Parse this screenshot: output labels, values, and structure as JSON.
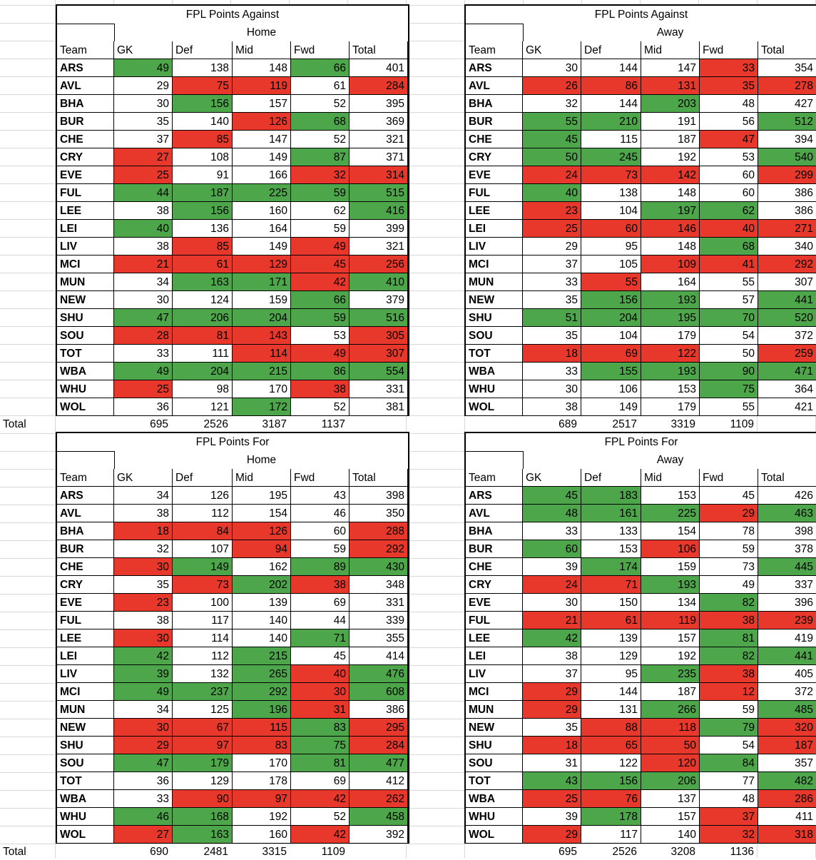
{
  "total_label": "Total",
  "headers": {
    "team": "Team",
    "columns": [
      "GK",
      "Def",
      "Mid",
      "Fwd",
      "Total"
    ]
  },
  "teams": [
    "ARS",
    "AVL",
    "BHA",
    "BUR",
    "CHE",
    "CRY",
    "EVE",
    "FUL",
    "LEE",
    "LEI",
    "LIV",
    "MCI",
    "MUN",
    "NEW",
    "SHU",
    "SOU",
    "TOT",
    "WBA",
    "WHU",
    "WOL"
  ],
  "colors": {
    "green": "#4ea64a",
    "red": "#e8382b",
    "white": "#ffffff"
  },
  "tables": [
    {
      "title": "FPL Points Against",
      "subtitle": "Home",
      "rows": [
        {
          "v": [
            49,
            138,
            148,
            66,
            401
          ],
          "c": "gwwgw"
        },
        {
          "v": [
            29,
            75,
            119,
            61,
            284
          ],
          "c": "wrrwr"
        },
        {
          "v": [
            30,
            156,
            157,
            52,
            395
          ],
          "c": "wgwww"
        },
        {
          "v": [
            35,
            140,
            126,
            68,
            369
          ],
          "c": "wwrgw"
        },
        {
          "v": [
            37,
            85,
            147,
            52,
            321
          ],
          "c": "wrwww"
        },
        {
          "v": [
            27,
            108,
            149,
            87,
            371
          ],
          "c": "rwwgw"
        },
        {
          "v": [
            25,
            91,
            166,
            32,
            314
          ],
          "c": "rwwrr"
        },
        {
          "v": [
            44,
            187,
            225,
            59,
            515
          ],
          "c": "ggggg"
        },
        {
          "v": [
            38,
            156,
            160,
            62,
            416
          ],
          "c": "wgwwg"
        },
        {
          "v": [
            40,
            136,
            164,
            59,
            399
          ],
          "c": "gwwww"
        },
        {
          "v": [
            38,
            85,
            149,
            49,
            321
          ],
          "c": "wrwrw"
        },
        {
          "v": [
            21,
            61,
            129,
            45,
            256
          ],
          "c": "rrrrr"
        },
        {
          "v": [
            34,
            163,
            171,
            42,
            410
          ],
          "c": "wggrg"
        },
        {
          "v": [
            30,
            124,
            159,
            66,
            379
          ],
          "c": "wwwgw"
        },
        {
          "v": [
            47,
            206,
            204,
            59,
            516
          ],
          "c": "ggggg"
        },
        {
          "v": [
            28,
            81,
            143,
            53,
            305
          ],
          "c": "rrrwr"
        },
        {
          "v": [
            33,
            111,
            114,
            49,
            307
          ],
          "c": "wwrrr"
        },
        {
          "v": [
            49,
            204,
            215,
            86,
            554
          ],
          "c": "ggggg"
        },
        {
          "v": [
            25,
            98,
            170,
            38,
            331
          ],
          "c": "rwwrw"
        },
        {
          "v": [
            36,
            121,
            172,
            52,
            381
          ],
          "c": "wwgww"
        }
      ],
      "totals": [
        695,
        2526,
        3187,
        1137
      ]
    },
    {
      "title": "FPL Points Against",
      "subtitle": "Away",
      "rows": [
        {
          "v": [
            30,
            144,
            147,
            33,
            354
          ],
          "c": "wwwrw"
        },
        {
          "v": [
            26,
            86,
            131,
            35,
            278
          ],
          "c": "rrrrr"
        },
        {
          "v": [
            32,
            144,
            203,
            48,
            427
          ],
          "c": "wwgww"
        },
        {
          "v": [
            55,
            210,
            191,
            56,
            512
          ],
          "c": "ggwwg"
        },
        {
          "v": [
            45,
            115,
            187,
            47,
            394
          ],
          "c": "gwwrw"
        },
        {
          "v": [
            50,
            245,
            192,
            53,
            540
          ],
          "c": "ggwwg"
        },
        {
          "v": [
            24,
            73,
            142,
            60,
            299
          ],
          "c": "rrrwr"
        },
        {
          "v": [
            40,
            138,
            148,
            60,
            386
          ],
          "c": "gwwww"
        },
        {
          "v": [
            23,
            104,
            197,
            62,
            386
          ],
          "c": "rwggw"
        },
        {
          "v": [
            25,
            60,
            146,
            40,
            271
          ],
          "c": "rrrrr"
        },
        {
          "v": [
            29,
            95,
            148,
            68,
            340
          ],
          "c": "wwwgw"
        },
        {
          "v": [
            37,
            105,
            109,
            41,
            292
          ],
          "c": "wwrrr"
        },
        {
          "v": [
            33,
            55,
            164,
            55,
            307
          ],
          "c": "wrwww"
        },
        {
          "v": [
            35,
            156,
            193,
            57,
            441
          ],
          "c": "wggwg"
        },
        {
          "v": [
            51,
            204,
            195,
            70,
            520
          ],
          "c": "ggggg"
        },
        {
          "v": [
            35,
            104,
            179,
            54,
            372
          ],
          "c": "wwwww"
        },
        {
          "v": [
            18,
            69,
            122,
            50,
            259
          ],
          "c": "rrrwr"
        },
        {
          "v": [
            33,
            155,
            193,
            90,
            471
          ],
          "c": "wgggg"
        },
        {
          "v": [
            30,
            106,
            153,
            75,
            364
          ],
          "c": "wwwgw"
        },
        {
          "v": [
            38,
            149,
            179,
            55,
            421
          ],
          "c": "wwwww"
        }
      ],
      "totals": [
        689,
        2517,
        3319,
        1109
      ]
    },
    {
      "title": "FPL Points For",
      "subtitle": "Home",
      "rows": [
        {
          "v": [
            34,
            126,
            195,
            43,
            398
          ],
          "c": "wwwww"
        },
        {
          "v": [
            38,
            112,
            154,
            46,
            350
          ],
          "c": "wwwww"
        },
        {
          "v": [
            18,
            84,
            126,
            60,
            288
          ],
          "c": "rrrwr"
        },
        {
          "v": [
            32,
            107,
            94,
            59,
            292
          ],
          "c": "wwrwr"
        },
        {
          "v": [
            30,
            149,
            162,
            89,
            430
          ],
          "c": "rgwgg"
        },
        {
          "v": [
            35,
            73,
            202,
            38,
            348
          ],
          "c": "wrgrw"
        },
        {
          "v": [
            23,
            100,
            139,
            69,
            331
          ],
          "c": "rwwww"
        },
        {
          "v": [
            38,
            117,
            140,
            44,
            339
          ],
          "c": "wwwww"
        },
        {
          "v": [
            30,
            114,
            140,
            71,
            355
          ],
          "c": "rwwgw"
        },
        {
          "v": [
            42,
            112,
            215,
            45,
            414
          ],
          "c": "gwgww"
        },
        {
          "v": [
            39,
            132,
            265,
            40,
            476
          ],
          "c": "gwgrg"
        },
        {
          "v": [
            49,
            237,
            292,
            30,
            608
          ],
          "c": "gggrg"
        },
        {
          "v": [
            34,
            125,
            196,
            31,
            386
          ],
          "c": "wwgrw"
        },
        {
          "v": [
            30,
            67,
            115,
            83,
            295
          ],
          "c": "rrrgr"
        },
        {
          "v": [
            29,
            97,
            83,
            75,
            284
          ],
          "c": "rrrgr"
        },
        {
          "v": [
            47,
            179,
            170,
            81,
            477
          ],
          "c": "ggwgg"
        },
        {
          "v": [
            36,
            129,
            178,
            69,
            412
          ],
          "c": "wwwww"
        },
        {
          "v": [
            33,
            90,
            97,
            42,
            262
          ],
          "c": "wrrrr"
        },
        {
          "v": [
            46,
            168,
            192,
            52,
            458
          ],
          "c": "ggwwg"
        },
        {
          "v": [
            27,
            163,
            160,
            42,
            392
          ],
          "c": "rgwrw"
        }
      ],
      "totals": [
        690,
        2481,
        3315,
        1109
      ]
    },
    {
      "title": "FPL Points For",
      "subtitle": "Away",
      "rows": [
        {
          "v": [
            45,
            183,
            153,
            45,
            426
          ],
          "c": "ggwww"
        },
        {
          "v": [
            48,
            161,
            225,
            29,
            463
          ],
          "c": "gggrg"
        },
        {
          "v": [
            33,
            133,
            154,
            78,
            398
          ],
          "c": "wwwww"
        },
        {
          "v": [
            60,
            153,
            106,
            59,
            378
          ],
          "c": "gwrww"
        },
        {
          "v": [
            39,
            174,
            159,
            73,
            445
          ],
          "c": "wgwwg"
        },
        {
          "v": [
            24,
            71,
            193,
            49,
            337
          ],
          "c": "rrgww"
        },
        {
          "v": [
            30,
            150,
            134,
            82,
            396
          ],
          "c": "wwwgw"
        },
        {
          "v": [
            21,
            61,
            119,
            38,
            239
          ],
          "c": "rrrrr"
        },
        {
          "v": [
            42,
            139,
            157,
            81,
            419
          ],
          "c": "gwwgw"
        },
        {
          "v": [
            38,
            129,
            192,
            82,
            441
          ],
          "c": "wwwgg"
        },
        {
          "v": [
            37,
            95,
            235,
            38,
            405
          ],
          "c": "wwgrw"
        },
        {
          "v": [
            29,
            144,
            187,
            12,
            372
          ],
          "c": "rwwrw"
        },
        {
          "v": [
            29,
            131,
            266,
            59,
            485
          ],
          "c": "rwgwg"
        },
        {
          "v": [
            35,
            88,
            118,
            79,
            320
          ],
          "c": "wrrgr"
        },
        {
          "v": [
            18,
            65,
            50,
            54,
            187
          ],
          "c": "rrrwr"
        },
        {
          "v": [
            31,
            122,
            120,
            84,
            357
          ],
          "c": "wwrgw"
        },
        {
          "v": [
            43,
            156,
            206,
            77,
            482
          ],
          "c": "gggwg"
        },
        {
          "v": [
            25,
            76,
            137,
            48,
            286
          ],
          "c": "rrwwr"
        },
        {
          "v": [
            39,
            178,
            157,
            37,
            411
          ],
          "c": "wgwrw"
        },
        {
          "v": [
            29,
            117,
            140,
            32,
            318
          ],
          "c": "rwwrr"
        }
      ],
      "totals": [
        695,
        2526,
        3208,
        1136
      ]
    }
  ]
}
